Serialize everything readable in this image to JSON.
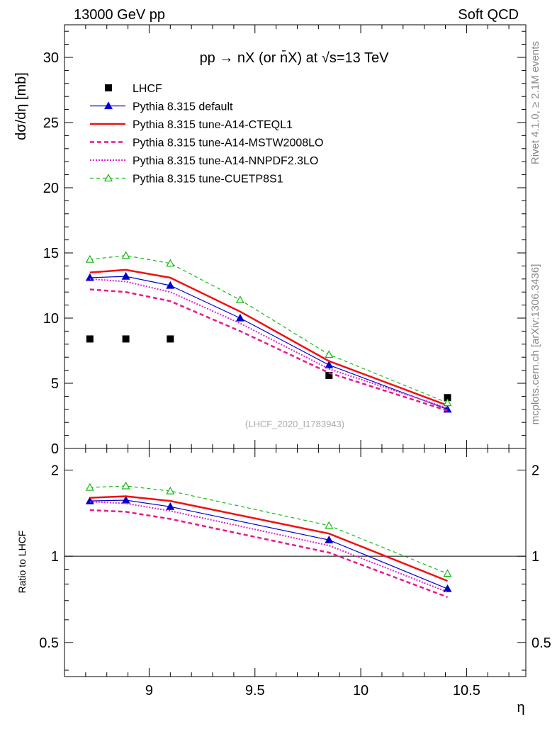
{
  "header": {
    "left": "13000 GeV pp",
    "right": "Soft QCD"
  },
  "side_labels": {
    "rivet": "Rivet 4.1.0, ≥ 2.1M events",
    "mcplots": "mcplots.cern.ch [arXiv:1306.3436]"
  },
  "chart_data": [
    {
      "type": "line",
      "panel": "main",
      "title": "pp → nX (or n̄X) at √s=13 TeV",
      "ylabel": "dσ/dη [mb]",
      "xlabel": "η",
      "xlim": [
        8.6,
        10.78
      ],
      "ylim": [
        0,
        32.5
      ],
      "yticks": [
        0,
        5,
        10,
        15,
        20,
        25,
        30
      ],
      "ytick_labels": [
        "0",
        "5",
        "10",
        "15",
        "20",
        "25",
        "30"
      ],
      "x": [
        8.72,
        8.89,
        9.1,
        9.43,
        9.85,
        10.41
      ],
      "watermark": "(LHCF_2020_I1783943)",
      "series": [
        {
          "name": "LHCF",
          "style": "data",
          "color": "#000000",
          "x": [
            8.72,
            8.89,
            9.1,
            9.85,
            10.41
          ],
          "values": [
            8.4,
            8.4,
            8.4,
            5.6,
            3.9
          ]
        },
        {
          "name": "Pythia 8.315 default",
          "style": "solid-thin",
          "marker": "triangle",
          "color": "#0000cc",
          "values": [
            13.1,
            13.2,
            12.5,
            10.0,
            6.4,
            3.0
          ]
        },
        {
          "name": "Pythia 8.315 tune-A14-CTEQL1",
          "style": "solid-thick",
          "color": "#ee1111",
          "values": [
            13.5,
            13.7,
            13.1,
            10.5,
            6.7,
            3.3
          ]
        },
        {
          "name": "Pythia 8.315 tune-A14-MSTW2008LO",
          "style": "dashed-thick",
          "color": "#e8178c",
          "values": [
            12.2,
            12.0,
            11.3,
            9.0,
            5.8,
            2.9
          ]
        },
        {
          "name": "Pythia 8.315 tune-A14-NNPDF2.3LO",
          "style": "dotted",
          "color": "#dd22cc",
          "values": [
            13.0,
            12.8,
            12.0,
            9.6,
            6.1,
            3.1
          ]
        },
        {
          "name": "Pythia 8.315 tune-CUETP8S1",
          "style": "dashed-thin",
          "marker": "open-triangle",
          "color": "#11bb11",
          "values": [
            14.5,
            14.8,
            14.2,
            11.4,
            7.2,
            3.5
          ]
        }
      ]
    },
    {
      "type": "line",
      "panel": "ratio",
      "ylabel": "Ratio to LHCF",
      "xlabel": "η",
      "yscale": "log",
      "xlim": [
        8.6,
        10.78
      ],
      "ylim": [
        0.38,
        2.38
      ],
      "yticks": [
        0.5,
        1,
        2
      ],
      "ytick_labels": [
        "0.5",
        "1",
        "2"
      ],
      "xticks": [
        9,
        9.5,
        10,
        10.5
      ],
      "xtick_labels": [
        "9",
        "9.5",
        "10",
        "10.5"
      ],
      "x": [
        8.72,
        8.89,
        9.1,
        9.85,
        10.41
      ],
      "reference": 1,
      "series": [
        {
          "name": "Pythia 8.315 default",
          "color": "#0000cc",
          "values": [
            1.56,
            1.57,
            1.49,
            1.14,
            0.77
          ]
        },
        {
          "name": "Pythia 8.315 tune-A14-CTEQL1",
          "color": "#ee1111",
          "values": [
            1.6,
            1.62,
            1.56,
            1.2,
            0.82
          ]
        },
        {
          "name": "Pythia 8.315 tune-A14-MSTW2008LO",
          "color": "#e8178c",
          "values": [
            1.45,
            1.43,
            1.35,
            1.03,
            0.72
          ]
        },
        {
          "name": "Pythia 8.315 tune-A14-NNPDF2.3LO",
          "color": "#dd22cc",
          "values": [
            1.55,
            1.53,
            1.44,
            1.09,
            0.75
          ]
        },
        {
          "name": "Pythia 8.315 tune-CUETP8S1",
          "color": "#11bb11",
          "values": [
            1.74,
            1.76,
            1.69,
            1.28,
            0.87
          ]
        }
      ]
    }
  ]
}
